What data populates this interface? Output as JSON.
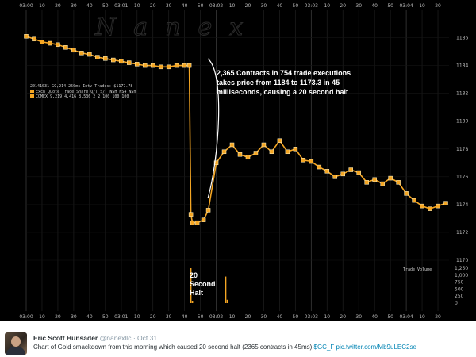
{
  "chart": {
    "watermark": "Nanex",
    "symbol_block": {
      "line1": "20141031-GC,214+250ms Intv-Trades: $1177.78",
      "line2_label": "Exch Quote Trade Share  Q/T  S/T  NSH NS4 NSh",
      "line3_label": "COMEX 9,219 4,416 8,536   2    2 100 100 100"
    },
    "annotation": "2,365 Contracts in 754 trade executions takes price from 1184 to 1173.3 in 45 milliseconds, causing a 20 second halt",
    "annotation_lines": [
      "2,365 Contracts in 754 trade executions",
      "takes price from 1184 to 1173.3 in 45",
      "milliseconds, causing a 20 second halt"
    ],
    "halt_label_lines": [
      "20",
      "Second",
      "Halt"
    ],
    "volume_label": "Trade Volume",
    "top_ticks": [
      {
        "label": "03:00",
        "major": true
      },
      {
        "label": "10"
      },
      {
        "label": "20"
      },
      {
        "label": "30"
      },
      {
        "label": "40"
      },
      {
        "label": "50"
      },
      {
        "label": "03:01",
        "major": true
      },
      {
        "label": "10"
      },
      {
        "label": "20"
      },
      {
        "label": "30"
      },
      {
        "label": "40"
      },
      {
        "label": "50"
      },
      {
        "label": "03:02",
        "major": true
      },
      {
        "label": "10"
      },
      {
        "label": "20"
      },
      {
        "label": "30"
      },
      {
        "label": "40"
      },
      {
        "label": "50"
      },
      {
        "label": "03:03",
        "major": true
      },
      {
        "label": "10"
      },
      {
        "label": "20"
      },
      {
        "label": "30"
      },
      {
        "label": "40"
      },
      {
        "label": "50"
      },
      {
        "label": "03:04",
        "major": true
      },
      {
        "label": "10"
      },
      {
        "label": "20"
      }
    ],
    "price_ticks": [
      "1186",
      "1184",
      "1182",
      "1180",
      "1178",
      "1176",
      "1174",
      "1172",
      "1170"
    ],
    "volume_ticks": [
      "1,250",
      "1,000",
      "750",
      "500",
      "250",
      "0"
    ],
    "colors": {
      "background": "#000000",
      "series": "#f5a623",
      "grid": "#1f1f1f",
      "annotation": "#ffffff"
    }
  },
  "chart_data": {
    "type": "line",
    "title": "",
    "xlabel": "",
    "ylabel": "",
    "ylim": [
      1170,
      1187
    ],
    "x_range": [
      "03:00:00",
      "03:04:27"
    ],
    "series": [
      {
        "name": "",
        "x": [
          "03:00:00",
          "03:00:05",
          "03:00:10",
          "03:00:15",
          "03:00:20",
          "03:00:25",
          "03:00:30",
          "03:00:35",
          "03:00:40",
          "03:00:45",
          "03:00:50",
          "03:00:55",
          "03:01:00",
          "03:01:05",
          "03:01:10",
          "03:01:15",
          "03:01:20",
          "03:01:25",
          "03:01:30",
          "03:01:35",
          "03:01:40",
          "03:01:43",
          "03:01:44",
          "03:01:45",
          "03:01:48",
          "03:01:52",
          "03:01:55",
          "03:02:00",
          "03:02:05",
          "03:02:10",
          "03:02:15",
          "03:02:20",
          "03:02:25",
          "03:02:30",
          "03:02:35",
          "03:02:40",
          "03:02:45",
          "03:02:50",
          "03:02:55",
          "03:03:00",
          "03:03:05",
          "03:03:10",
          "03:03:15",
          "03:03:20",
          "03:03:25",
          "03:03:30",
          "03:03:35",
          "03:03:40",
          "03:03:45",
          "03:03:50",
          "03:03:55",
          "03:04:00",
          "03:04:05",
          "03:04:10",
          "03:04:15",
          "03:04:20",
          "03:04:25"
        ],
        "values": [
          1186.1,
          1185.9,
          1185.7,
          1185.6,
          1185.5,
          1185.3,
          1185.1,
          1184.9,
          1184.8,
          1184.6,
          1184.5,
          1184.4,
          1184.3,
          1184.2,
          1184.1,
          1184.0,
          1184.0,
          1183.9,
          1183.9,
          1184.0,
          1184.0,
          1184.0,
          1173.3,
          1172.7,
          1172.7,
          1172.9,
          1173.6,
          1177.0,
          1177.8,
          1178.3,
          1177.6,
          1177.4,
          1177.7,
          1178.3,
          1177.8,
          1178.6,
          1177.8,
          1178.0,
          1177.2,
          1177.1,
          1176.7,
          1176.4,
          1176.0,
          1176.2,
          1176.5,
          1176.3,
          1175.6,
          1175.8,
          1175.5,
          1175.9,
          1175.6,
          1174.8,
          1174.3,
          1173.9,
          1173.7,
          1173.9,
          1174.1
        ]
      }
    ],
    "volume_series": {
      "name": "Trade Volume",
      "ylim": [
        0,
        1250
      ],
      "x": [
        "03:01:44",
        "03:01:45",
        "03:02:06",
        "03:02:07"
      ],
      "values": [
        1250,
        60,
        950,
        120
      ]
    }
  },
  "tweet": {
    "author": "Eric Scott Hunsader",
    "handle": "@nanexllc",
    "separator": "·",
    "date": "Oct 31",
    "text": "Chart of Gold smackdown from this morning which caused 20 second halt (2365 contracts in 45ms) ",
    "cashtag": "$GC_F",
    "link": "pic.twitter.com/Mb9uLEC2se"
  }
}
